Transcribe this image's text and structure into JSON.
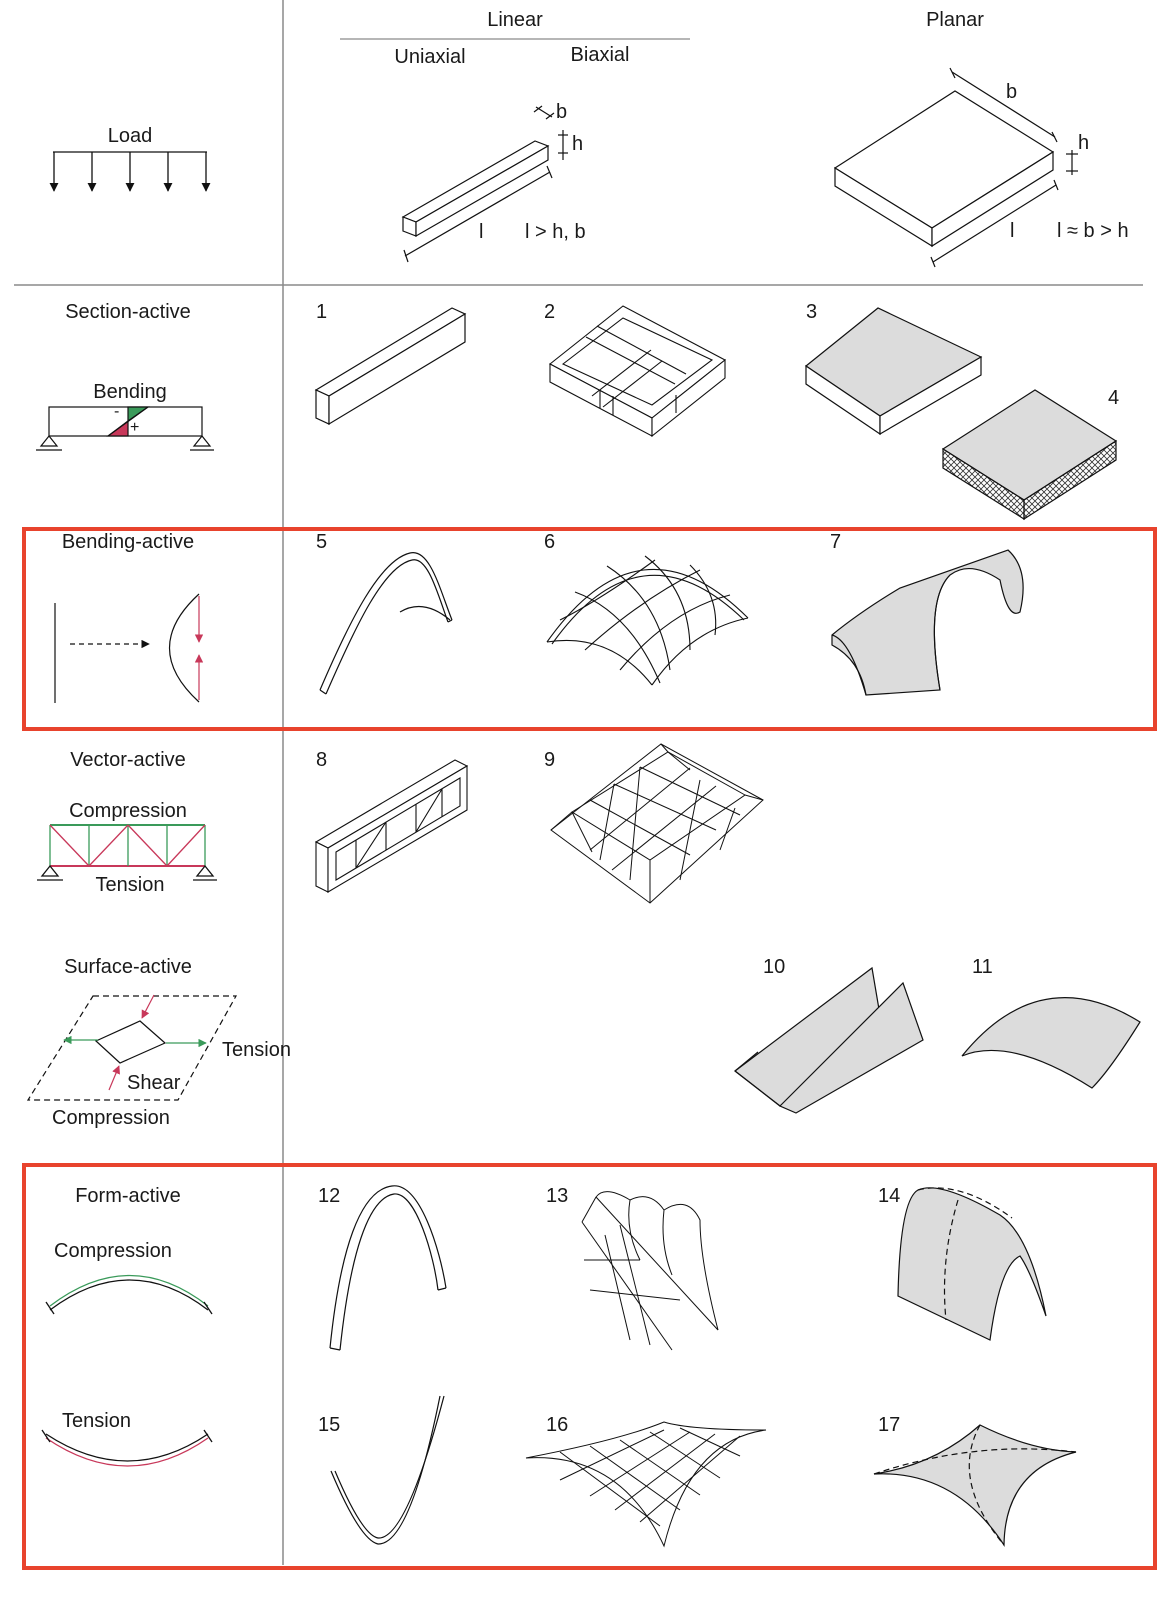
{
  "header": {
    "linear": "Linear",
    "planar": "Planar",
    "uniaxial": "Uniaxial",
    "biaxial": "Biaxial",
    "load": "Load",
    "dim_b": "b",
    "dim_h": "h",
    "dim_l": "l",
    "dim_b2": "b",
    "dim_h2": "h",
    "dim_l2": "l",
    "linear_rule": "l > h, b",
    "planar_rule": "l ≈ b > h"
  },
  "rows": {
    "section_active": {
      "title": "Section-active",
      "sub": "Bending",
      "minus": "-",
      "plus": "+"
    },
    "bending_active": {
      "title": "Bending-active"
    },
    "vector_active": {
      "title": "Vector-active",
      "top": "Compression",
      "bottom": "Tension"
    },
    "surface_active": {
      "title": "Surface-active",
      "tension": "Tension",
      "shear": "Shear",
      "compression": "Compression"
    },
    "form_active": {
      "title": "Form-active",
      "compression": "Compression",
      "tension": "Tension"
    }
  },
  "numbers": [
    "1",
    "2",
    "3",
    "4",
    "5",
    "6",
    "7",
    "8",
    "9",
    "10",
    "11",
    "12",
    "13",
    "14",
    "15",
    "16",
    "17"
  ],
  "colors": {
    "highlight": "#e8432d",
    "compression": "#3a9a5a",
    "tension": "#c8385a",
    "fill_gray": "#dcdcdc",
    "grid": "#8a8a8a"
  }
}
